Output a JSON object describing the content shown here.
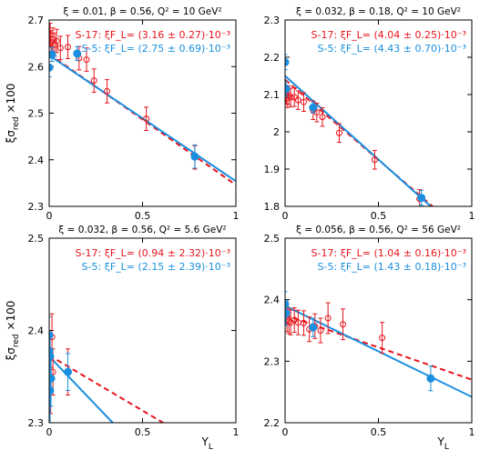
{
  "colors": {
    "red": "#e8141b",
    "blue": "#1a8fe0"
  },
  "axis": {
    "ylabel_main": "ξσ",
    "ylabel_sub": "red",
    "ylabel_tail": " ×100",
    "xlabel_main": "Y",
    "xlabel_sub": "L"
  },
  "chart_data": [
    {
      "type": "scatter",
      "title": "ξ = 0.01, β = 0.56, Q² = 10 GeV²",
      "xlim": [
        0,
        1
      ],
      "ylim": [
        2.3,
        2.7
      ],
      "xticks": [
        "0",
        "0.5",
        "1"
      ],
      "xtick_vals": [
        0,
        0.5,
        1
      ],
      "yticks": [
        "2.3",
        "2.4",
        "2.5",
        "2.6",
        "2.7"
      ],
      "ytick_vals": [
        2.3,
        2.4,
        2.5,
        2.6,
        2.7
      ],
      "legend": [
        "S-17: ξF_L= (3.16 ± 0.27)·10⁻³",
        "S-5: ξF_L= (2.75 ± 0.69)·10⁻³"
      ],
      "series": [
        {
          "name": "S-17",
          "color": "red",
          "marker": "open",
          "line": "dashed",
          "fit": [
            [
              0,
              2.627
            ],
            [
              1,
              2.346
            ]
          ],
          "points": [
            [
              0.005,
              2.668,
              0.025
            ],
            [
              0.01,
              2.652,
              0.025
            ],
            [
              0.02,
              2.658,
              0.025
            ],
            [
              0.03,
              2.647,
              0.025
            ],
            [
              0.04,
              2.655,
              0.025
            ],
            [
              0.06,
              2.64,
              0.025
            ],
            [
              0.1,
              2.642,
              0.025
            ],
            [
              0.16,
              2.618,
              0.025
            ],
            [
              0.2,
              2.615,
              0.025
            ],
            [
              0.24,
              2.57,
              0.025
            ],
            [
              0.31,
              2.547,
              0.025
            ],
            [
              0.52,
              2.488,
              0.025
            ],
            [
              0.78,
              2.405,
              0.025
            ]
          ]
        },
        {
          "name": "S-5",
          "color": "blue",
          "marker": "filled",
          "line": "solid",
          "fit": [
            [
              0,
              2.624
            ],
            [
              1,
              2.354
            ]
          ],
          "points": [
            [
              0,
              2.598,
              0.02
            ],
            [
              0.015,
              2.626,
              0.015
            ],
            [
              0.15,
              2.628,
              0.015
            ],
            [
              0.78,
              2.407,
              0.025
            ]
          ]
        }
      ]
    },
    {
      "type": "scatter",
      "title": "ξ = 0.032, β = 0.18, Q² = 10 GeV²",
      "xlim": [
        0,
        1
      ],
      "ylim": [
        1.8,
        2.3
      ],
      "xticks": [
        "0",
        "0.5",
        "1"
      ],
      "xtick_vals": [
        0,
        0.5,
        1
      ],
      "yticks": [
        "1.8",
        "1.9",
        "2",
        "2.1",
        "2.2",
        "2.3"
      ],
      "ytick_vals": [
        1.8,
        1.9,
        2.0,
        2.1,
        2.2,
        2.3
      ],
      "legend": [
        "S-17: ξF_L= (4.04 ± 0.25)·10⁻³",
        "S-5: ξF_L= (4.43 ± 0.70)·10⁻³"
      ],
      "series": [
        {
          "name": "S-17",
          "color": "red",
          "marker": "open",
          "line": "dashed",
          "fit": [
            [
              0,
              2.14
            ],
            [
              0.79,
              1.8
            ]
          ],
          "points": [
            [
              0.005,
              2.1,
              0.025
            ],
            [
              0.01,
              2.09,
              0.025
            ],
            [
              0.02,
              2.098,
              0.025
            ],
            [
              0.03,
              2.092,
              0.025
            ],
            [
              0.05,
              2.093,
              0.025
            ],
            [
              0.07,
              2.085,
              0.025
            ],
            [
              0.1,
              2.08,
              0.025
            ],
            [
              0.15,
              2.058,
              0.025
            ],
            [
              0.17,
              2.052,
              0.025
            ],
            [
              0.2,
              2.04,
              0.025
            ],
            [
              0.29,
              1.997,
              0.025
            ],
            [
              0.48,
              1.925,
              0.025
            ],
            [
              0.72,
              1.82,
              0.025
            ]
          ]
        },
        {
          "name": "S-5",
          "color": "blue",
          "marker": "filled",
          "line": "solid",
          "fit": [
            [
              0,
              2.15
            ],
            [
              0.78,
              1.8
            ]
          ],
          "points": [
            [
              0,
              2.187,
              0.02
            ],
            [
              0.005,
              2.115,
              0.02
            ],
            [
              0.15,
              2.065,
              0.015
            ],
            [
              0.73,
              1.823,
              0.02
            ]
          ]
        }
      ]
    },
    {
      "type": "scatter",
      "title": "ξ = 0.032, β = 0.56, Q² = 5.6 GeV²",
      "xlim": [
        0,
        1
      ],
      "ylim": [
        2.3,
        2.5
      ],
      "xticks": [
        "0",
        "0.5",
        "1"
      ],
      "xtick_vals": [
        0,
        0.5,
        1
      ],
      "yticks": [
        "2.3",
        "2.4",
        "2.5"
      ],
      "ytick_vals": [
        2.3,
        2.4,
        2.5
      ],
      "legend": [
        "S-17: ξF_L= (0.94 ± 2.32)·10⁻³",
        "S-5: ξF_L= (2.15 ± 2.39)·10⁻³"
      ],
      "series": [
        {
          "name": "S-17",
          "color": "red",
          "marker": "open",
          "line": "dashed",
          "fit": [
            [
              0,
              2.373
            ],
            [
              0.61,
              2.3
            ]
          ],
          "points": [
            [
              0.005,
              2.37,
              0.025
            ],
            [
              0.008,
              2.335,
              0.025
            ],
            [
              0.015,
              2.393,
              0.025
            ],
            [
              0.02,
              2.355,
              0.025
            ],
            [
              0.1,
              2.355,
              0.025
            ]
          ]
        },
        {
          "name": "S-5",
          "color": "blue",
          "marker": "filled",
          "line": "solid",
          "fit": [
            [
              0,
              2.372
            ],
            [
              0.34,
              2.3
            ]
          ],
          "points": [
            [
              0,
              2.395,
              0.02
            ],
            [
              0,
              2.378,
              0.02
            ],
            [
              0.005,
              2.372,
              0.02
            ],
            [
              0.005,
              2.335,
              0.035
            ],
            [
              0.01,
              2.348,
              0.03
            ],
            [
              0.1,
              2.355,
              0.02
            ]
          ]
        }
      ]
    },
    {
      "type": "scatter",
      "title": "ξ = 0.056, β = 0.56, Q² = 56 GeV²",
      "xlim": [
        0,
        1
      ],
      "ylim": [
        2.2,
        2.5
      ],
      "xticks": [
        "0",
        "0.5",
        "1"
      ],
      "xtick_vals": [
        0,
        0.5,
        1
      ],
      "yticks": [
        "2.2",
        "2.3",
        "2.4",
        "2.5"
      ],
      "ytick_vals": [
        2.2,
        2.3,
        2.4,
        2.5
      ],
      "legend": [
        "S-17: ξF_L= (1.04 ± 0.16)·10⁻³",
        "S-5: ξF_L= (1.43 ± 0.18)·10⁻³"
      ],
      "series": [
        {
          "name": "S-17",
          "color": "red",
          "marker": "open",
          "line": "dashed",
          "fit": [
            [
              0,
              2.375
            ],
            [
              1,
              2.27
            ]
          ],
          "points": [
            [
              0.01,
              2.368,
              0.02
            ],
            [
              0.02,
              2.365,
              0.02
            ],
            [
              0.03,
              2.363,
              0.02
            ],
            [
              0.05,
              2.367,
              0.02
            ],
            [
              0.07,
              2.363,
              0.02
            ],
            [
              0.1,
              2.362,
              0.02
            ],
            [
              0.13,
              2.352,
              0.02
            ],
            [
              0.16,
              2.357,
              0.02
            ],
            [
              0.19,
              2.35,
              0.02
            ],
            [
              0.23,
              2.37,
              0.025
            ],
            [
              0.31,
              2.36,
              0.025
            ],
            [
              0.52,
              2.338,
              0.025
            ]
          ]
        },
        {
          "name": "S-5",
          "color": "blue",
          "marker": "filled",
          "line": "solid",
          "fit": [
            [
              0,
              2.39
            ],
            [
              1,
              2.242
            ]
          ],
          "points": [
            [
              0,
              2.393,
              0.02
            ],
            [
              0.005,
              2.378,
              0.02
            ],
            [
              0.15,
              2.355,
              0.015
            ],
            [
              0.78,
              2.272,
              0.02
            ]
          ]
        }
      ]
    }
  ]
}
